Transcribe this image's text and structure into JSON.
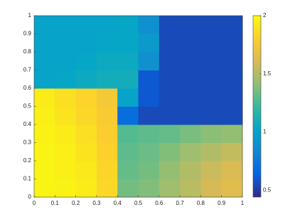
{
  "chart_data": {
    "type": "heatmap",
    "colormap": "parula",
    "x": [
      0.05,
      0.15,
      0.25,
      0.35,
      0.45,
      0.55,
      0.65,
      0.75,
      0.85,
      0.95
    ],
    "y": [
      0.05,
      0.15,
      0.25,
      0.35,
      0.45,
      0.55,
      0.65,
      0.75,
      0.85,
      0.95
    ],
    "z": [
      [
        1.97,
        1.96,
        1.93,
        1.85,
        1.35,
        1.38,
        1.45,
        1.52,
        1.6,
        1.65
      ],
      [
        1.97,
        1.95,
        1.92,
        1.84,
        1.32,
        1.35,
        1.42,
        1.5,
        1.57,
        1.62
      ],
      [
        1.97,
        1.95,
        1.9,
        1.82,
        1.3,
        1.33,
        1.38,
        1.45,
        1.5,
        1.55
      ],
      [
        1.96,
        1.93,
        1.88,
        1.8,
        1.28,
        1.3,
        1.32,
        1.36,
        1.4,
        1.42
      ],
      [
        1.95,
        1.9,
        1.85,
        1.78,
        0.7,
        0.55,
        0.55,
        0.55,
        0.55,
        0.55
      ],
      [
        1.93,
        1.88,
        1.83,
        1.76,
        1.0,
        0.6,
        0.55,
        0.55,
        0.55,
        0.55
      ],
      [
        1.0,
        1.02,
        1.05,
        1.08,
        1.08,
        0.6,
        0.55,
        0.55,
        0.55,
        0.55
      ],
      [
        1.0,
        1.0,
        1.02,
        1.05,
        1.05,
        0.9,
        0.55,
        0.55,
        0.55,
        0.55
      ],
      [
        1.0,
        1.0,
        1.0,
        1.02,
        1.02,
        0.95,
        0.55,
        0.55,
        0.55,
        0.55
      ],
      [
        1.0,
        1.0,
        1.0,
        1.0,
        1.02,
        0.9,
        0.55,
        0.55,
        0.55,
        0.55
      ]
    ],
    "xlim": [
      0,
      1
    ],
    "ylim": [
      0,
      1
    ],
    "xticks": [
      0,
      0.1,
      0.2,
      0.3,
      0.4,
      0.5,
      0.6,
      0.7,
      0.8,
      0.9,
      1
    ],
    "yticks": [
      0,
      0.1,
      0.2,
      0.3,
      0.4,
      0.5,
      0.6,
      0.7,
      0.8,
      0.9,
      1
    ],
    "clim": [
      0.44,
      2
    ],
    "cticks": [
      0.5,
      1,
      1.5,
      2
    ]
  }
}
